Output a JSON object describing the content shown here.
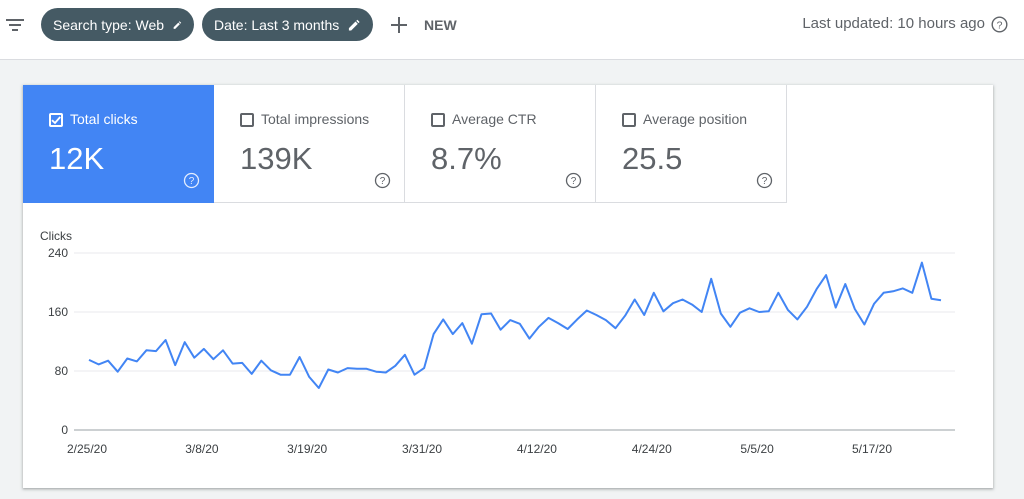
{
  "toolbar": {
    "filter_icon": "filter-list-icon",
    "chip_search": "Search type: Web",
    "chip_date": "Date: Last 3 months",
    "new_label": "NEW",
    "last_updated": "Last updated: 10 hours ago"
  },
  "metrics": [
    {
      "label": "Total clicks",
      "value": "12K",
      "checked": true,
      "color": "#4285f4"
    },
    {
      "label": "Total impressions",
      "value": "139K",
      "checked": false
    },
    {
      "label": "Average CTR",
      "value": "8.7%",
      "checked": false
    },
    {
      "label": "Average position",
      "value": "25.5",
      "checked": false
    }
  ],
  "chart_data": {
    "type": "line",
    "title": "",
    "ylabel": "Clicks",
    "xlabel": "",
    "ylim": [
      0,
      240
    ],
    "yticks": [
      0,
      80,
      160,
      240
    ],
    "xtick_labels": [
      "2/25/20",
      "3/8/20",
      "3/19/20",
      "3/31/20",
      "4/12/20",
      "4/24/20",
      "5/5/20",
      "5/17/20"
    ],
    "xtick_positions": [
      0,
      12,
      23,
      35,
      47,
      59,
      70,
      82
    ],
    "line_color": "#4285f4",
    "grid": true,
    "series": [
      {
        "values": [
          95,
          89,
          94,
          79,
          97,
          93,
          108,
          107,
          122,
          88,
          119,
          98,
          110,
          96,
          108,
          90,
          91,
          76,
          94,
          81,
          75,
          75,
          99,
          72,
          57,
          82,
          78,
          84,
          83,
          83,
          79,
          78,
          87,
          102,
          75,
          84,
          130,
          150,
          130,
          145,
          117,
          157,
          158,
          136,
          149,
          144,
          124,
          140,
          152,
          145,
          137,
          150,
          162,
          156,
          149,
          138,
          155,
          177,
          156,
          186,
          161,
          172,
          177,
          170,
          160,
          205,
          158,
          140,
          159,
          165,
          160,
          161,
          186,
          163,
          150,
          167,
          191,
          210,
          166,
          198,
          164,
          143,
          171,
          186,
          188,
          192,
          186,
          227,
          178,
          176
        ]
      }
    ]
  }
}
